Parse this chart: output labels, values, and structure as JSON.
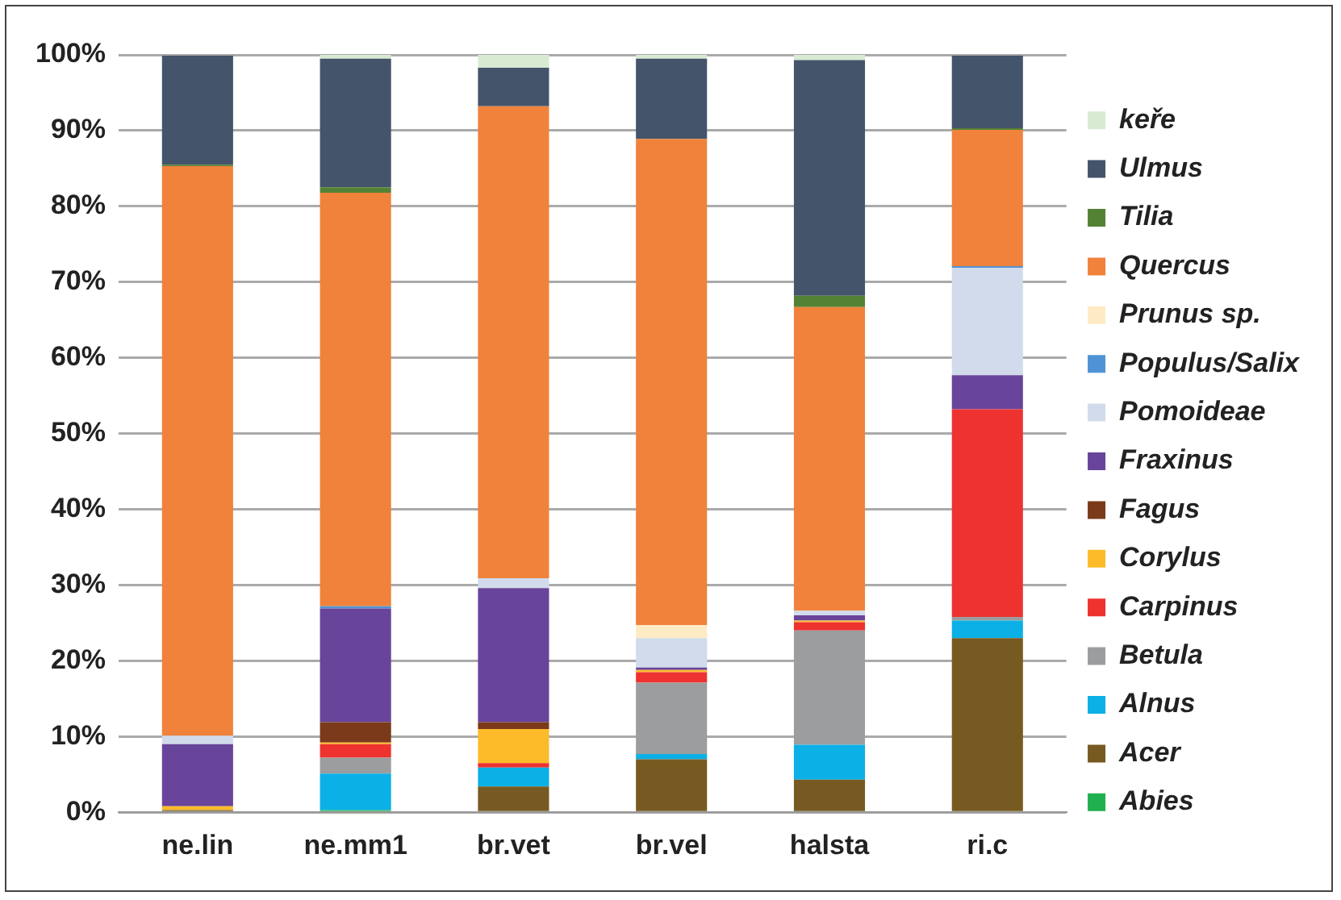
{
  "chart_data": {
    "type": "bar",
    "stacked": true,
    "categories": [
      "ne.lin",
      "ne.mm1",
      "br.vet",
      "br.vel",
      "halsta",
      "ri.c"
    ],
    "ylim": [
      0,
      100
    ],
    "yticks": [
      {
        "value": 0,
        "label": "0%"
      },
      {
        "value": 10,
        "label": "10%"
      },
      {
        "value": 20,
        "label": "20%"
      },
      {
        "value": 30,
        "label": "30%"
      },
      {
        "value": 40,
        "label": "40%"
      },
      {
        "value": 50,
        "label": "50%"
      },
      {
        "value": 60,
        "label": "60%"
      },
      {
        "value": 70,
        "label": "70%"
      },
      {
        "value": 80,
        "label": "80%"
      },
      {
        "value": 90,
        "label": "90%"
      },
      {
        "value": 100,
        "label": "100%"
      }
    ],
    "grid": "y",
    "legend": "right",
    "series": [
      {
        "name": "Abies",
        "color": "#21b050",
        "values": [
          0,
          0.3,
          0,
          0,
          0,
          0
        ]
      },
      {
        "name": "Acer",
        "color": "#775a21",
        "values": [
          0.3,
          0,
          3.4,
          7.0,
          4.3,
          23.0
        ]
      },
      {
        "name": "Alnus",
        "color": "#0bb0e6",
        "values": [
          0,
          4.8,
          2.5,
          0.7,
          4.6,
          2.3
        ]
      },
      {
        "name": "Betula",
        "color": "#9b9d9e",
        "values": [
          0,
          2.1,
          0,
          9.4,
          15.1,
          0.5
        ]
      },
      {
        "name": "Carpinus",
        "color": "#ee3230",
        "values": [
          0,
          1.8,
          0.6,
          1.4,
          1.1,
          27.4
        ]
      },
      {
        "name": "Corylus",
        "color": "#fdbb2a",
        "values": [
          0.5,
          0.2,
          4.5,
          0.3,
          0.2,
          0
        ]
      },
      {
        "name": "Fagus",
        "color": "#7b3a1a",
        "values": [
          0,
          2.7,
          0.9,
          0,
          0,
          0
        ]
      },
      {
        "name": "Fraxinus",
        "color": "#68449a",
        "values": [
          8.2,
          15.0,
          17.7,
          0.3,
          0.7,
          4.5
        ]
      },
      {
        "name": "Pomoideae",
        "color": "#d1dbeb",
        "values": [
          1.1,
          null,
          1.3,
          3.9,
          0.6,
          14.2
        ]
      },
      {
        "name": "Populus/Salix",
        "color": "#4f93d6",
        "values": [
          0,
          0.3,
          0,
          0,
          0,
          0.2
        ]
      },
      {
        "name": "Prunus sp.",
        "color": "#feebc4",
        "values": [
          0,
          null,
          0,
          1.7,
          0,
          0
        ]
      },
      {
        "name": "Quercus",
        "color": "#f0823c",
        "values": [
          75.2,
          54.6,
          62.3,
          64.2,
          40.1,
          18.0
        ]
      },
      {
        "name": "Tilia",
        "color": "#548235",
        "values": [
          0.2,
          0.7,
          0,
          0,
          1.5,
          0.2
        ]
      },
      {
        "name": "Ulmus",
        "color": "#44546a",
        "values": [
          14.4,
          17.0,
          5.1,
          10.6,
          31.1,
          9.6
        ]
      },
      {
        "name": "keře",
        "color": "#d9ead3",
        "values": [
          0,
          0.5,
          1.7,
          0.5,
          0.7,
          0
        ]
      }
    ]
  }
}
